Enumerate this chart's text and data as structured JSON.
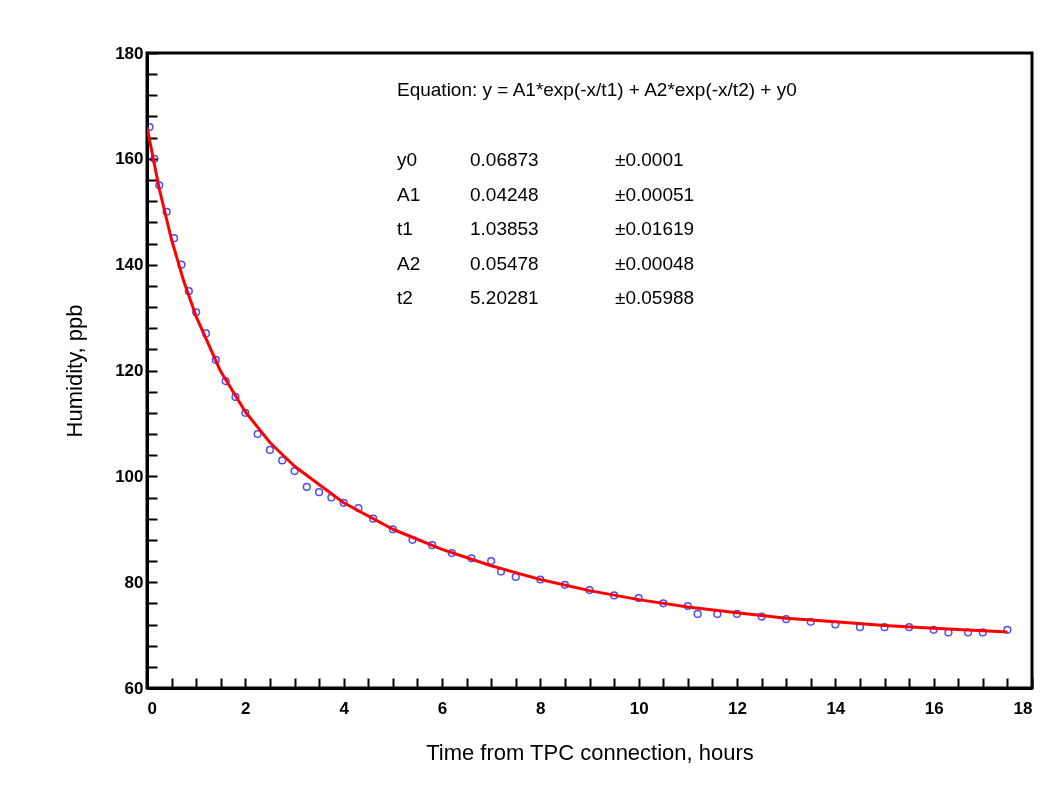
{
  "chart_data": {
    "type": "scatter",
    "xlabel": "Time from TPC connection, hours",
    "ylabel": "Humidity, ppb",
    "annotations": [
      "Equation: y = A1*exp(-x/t1) + A2*exp(-x/t2) + y0",
      "y0 0.06873 ±0.0001",
      "A1 0.04248 ±0.00051",
      "t1 1.03853 ±0.01619",
      "A2 0.05478 ±0.00048",
      "t2 5.20281 ±0.05988"
    ],
    "xlim": [
      0,
      18
    ],
    "ylim": [
      60,
      180
    ],
    "xticks": [
      0,
      {
        "value": 0.5,
        "label": null
      },
      {
        "value": 1,
        "label": null
      },
      {
        "value": 1.5,
        "label": null
      },
      2,
      {
        "value": 2.5,
        "label": null
      },
      {
        "value": 3,
        "label": null
      },
      {
        "value": 3.5,
        "label": null
      },
      4,
      {
        "value": 4.5,
        "label": null
      },
      {
        "value": 5,
        "label": null
      },
      {
        "value": 5.5,
        "label": null
      },
      6,
      {
        "value": 6.5,
        "label": null
      },
      {
        "value": 7,
        "label": null
      },
      {
        "value": 7.5,
        "label": null
      },
      8,
      {
        "value": 8.5,
        "label": null
      },
      {
        "value": 9,
        "label": null
      },
      {
        "value": 9.5,
        "label": null
      },
      10,
      {
        "value": 10.5,
        "label": null
      },
      {
        "value": 11,
        "label": null
      },
      {
        "value": 11.5,
        "label": null
      },
      12,
      {
        "value": 12.5,
        "label": null
      },
      {
        "value": 13,
        "label": null
      },
      {
        "value": 13.5,
        "label": null
      },
      14,
      {
        "value": 14.5,
        "label": null
      },
      {
        "value": 15,
        "label": null
      },
      {
        "value": 15.5,
        "label": null
      },
      16,
      {
        "value": 16.5,
        "label": null
      },
      {
        "value": 17,
        "label": null
      },
      {
        "value": 17.5,
        "label": null
      },
      18
    ],
    "yticks": [
      60,
      {
        "value": 64,
        "label": null
      },
      {
        "value": 68,
        "label": null
      },
      {
        "value": 72,
        "label": null
      },
      {
        "value": 76,
        "label": null
      },
      80,
      {
        "value": 84,
        "label": null
      },
      {
        "value": 88,
        "label": null
      },
      {
        "value": 92,
        "label": null
      },
      {
        "value": 96,
        "label": null
      },
      100,
      {
        "value": 104,
        "label": null
      },
      {
        "value": 108,
        "label": null
      },
      {
        "value": 112,
        "label": null
      },
      {
        "value": 116,
        "label": null
      },
      120,
      {
        "value": 124,
        "label": null
      },
      {
        "value": 128,
        "label": null
      },
      {
        "value": 132,
        "label": null
      },
      {
        "value": 136,
        "label": null
      },
      140,
      {
        "value": 144,
        "label": null
      },
      {
        "value": 148,
        "label": null
      },
      {
        "value": 152,
        "label": null
      },
      {
        "value": 156,
        "label": null
      },
      160,
      {
        "value": 164,
        "label": null
      },
      {
        "value": 168,
        "label": null
      },
      {
        "value": 172,
        "label": null
      },
      {
        "value": 176,
        "label": null
      },
      180
    ],
    "grid": false,
    "legend": false,
    "marker": "circle",
    "series": [
      {
        "color": "#0000ff",
        "x": [
          0.05,
          0.15,
          0.25,
          0.4,
          0.55,
          0.7,
          0.85,
          1.0,
          1.2,
          1.4,
          1.6,
          1.8,
          2.0,
          2.25,
          2.5,
          2.75,
          3.0,
          3.25,
          3.5,
          3.75,
          4.0,
          4.3,
          4.6,
          5.0,
          5.4,
          5.8,
          6.2,
          6.6,
          7.0,
          7.2,
          7.5,
          8.0,
          8.5,
          9.0,
          9.5,
          10.0,
          10.5,
          11.0,
          11.2,
          11.6,
          12.0,
          12.5,
          13.0,
          13.5,
          14.0,
          14.5,
          15.0,
          15.5,
          16.0,
          16.3,
          16.7,
          17.0,
          17.5
        ],
        "values": [
          166,
          160,
          155,
          150,
          145,
          140,
          135,
          131,
          127,
          122,
          118,
          115,
          112,
          108,
          105,
          103,
          101,
          98,
          97,
          96,
          95,
          94,
          92,
          90,
          88,
          87,
          85.5,
          84.5,
          84,
          82,
          81,
          80.5,
          79.5,
          78.5,
          77.5,
          77,
          76,
          75.5,
          74,
          74,
          74,
          73.5,
          73,
          72.5,
          72,
          71.5,
          71.5,
          71.5,
          71,
          70.5,
          70.5,
          70.5,
          71
        ]
      },
      {
        "type": "line",
        "color": "#ff0000",
        "marker": "none",
        "line_style": "solid",
        "x": [
          0,
          0.25,
          0.5,
          0.75,
          1,
          1.5,
          2,
          2.5,
          3,
          4,
          5,
          6,
          7,
          8,
          9,
          10,
          11,
          12,
          13,
          14,
          15,
          16,
          17,
          17.5
        ],
        "values": [
          166,
          154.3,
          144.7,
          136.8,
          130.2,
          119.8,
          112.2,
          106.4,
          101.9,
          95.0,
          90.0,
          86.2,
          83.1,
          80.5,
          78.4,
          76.7,
          75.3,
          74.2,
          73.2,
          72.5,
          71.8,
          71.3,
          70.8,
          70.6
        ]
      }
    ]
  }
}
